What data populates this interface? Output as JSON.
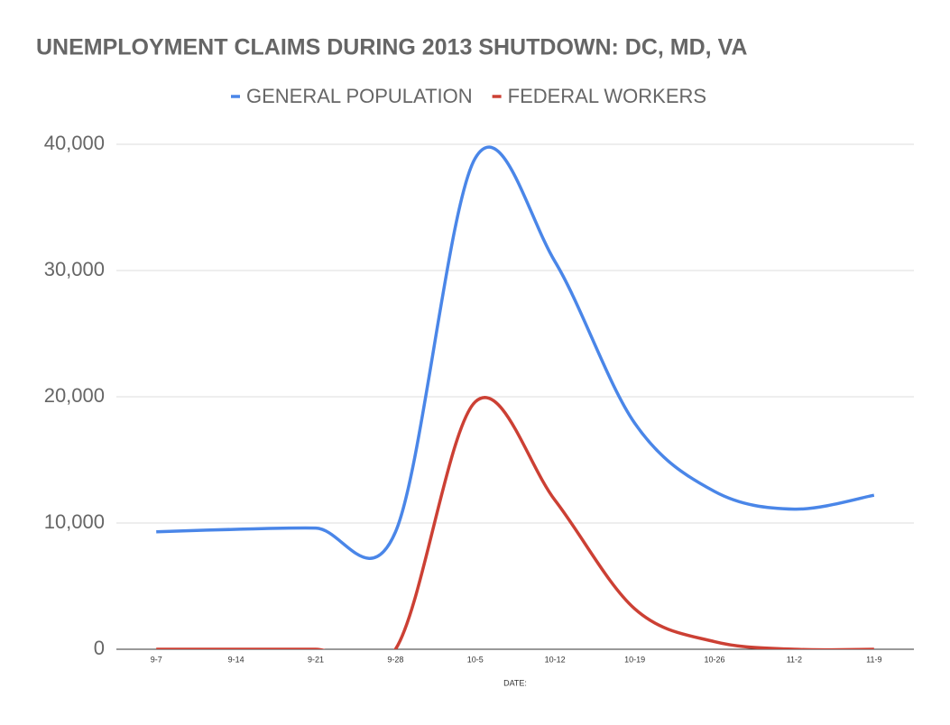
{
  "chart_data": {
    "type": "line",
    "title": "UNEMPLOYMENT CLAIMS DURING 2013 SHUTDOWN: DC, MD, VA",
    "x_label": "DATE:",
    "categories": [
      "9-7",
      "9-14",
      "9-21",
      "9-28",
      "10-5",
      "10-12",
      "10-19",
      "10-26",
      "11-2",
      "11-9"
    ],
    "series": [
      {
        "name": "GENERAL POPULATION",
        "color": "#4a86e8",
        "values": [
          9300,
          9500,
          9600,
          9300,
          38900,
          30700,
          17900,
          12500,
          11100,
          12200
        ]
      },
      {
        "name": "FEDERAL WORKERS",
        "color": "#cc4034",
        "values": [
          0,
          0,
          0,
          0,
          19600,
          11800,
          3200,
          600,
          0,
          0
        ]
      }
    ],
    "ylim": [
      0,
      40000
    ],
    "yticks": [
      0,
      {
        "value": 10000,
        "label": "10,000"
      },
      {
        "value": 20000,
        "label": "20,000"
      },
      {
        "value": 30000,
        "label": "30,000"
      },
      {
        "value": 40000,
        "label": "40,000"
      }
    ],
    "grid": true,
    "smooth": true,
    "legend": "top"
  }
}
